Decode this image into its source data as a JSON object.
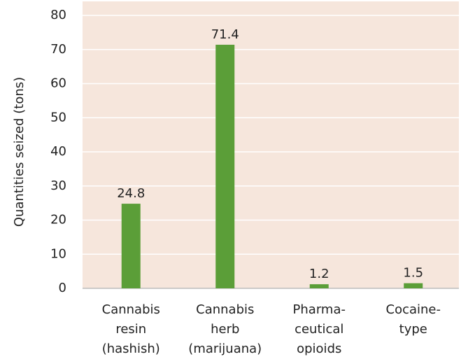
{
  "chart_data": {
    "type": "bar",
    "y_label": "Quantities seized (tons)",
    "categories": [
      [
        "Cannabis",
        "resin",
        "(hashish)"
      ],
      [
        "Cannabis",
        "herb",
        "(marijuana)"
      ],
      [
        "Pharma-",
        "ceutical",
        "opioids"
      ],
      [
        "Cocaine-",
        "type"
      ]
    ],
    "values": [
      24.8,
      71.4,
      1.2,
      1.5
    ],
    "color": "#5b9e38",
    "ylim": [
      0,
      80
    ],
    "yticks": [
      0,
      10,
      20,
      30,
      40,
      50,
      60,
      70,
      80
    ],
    "grid": true
  }
}
